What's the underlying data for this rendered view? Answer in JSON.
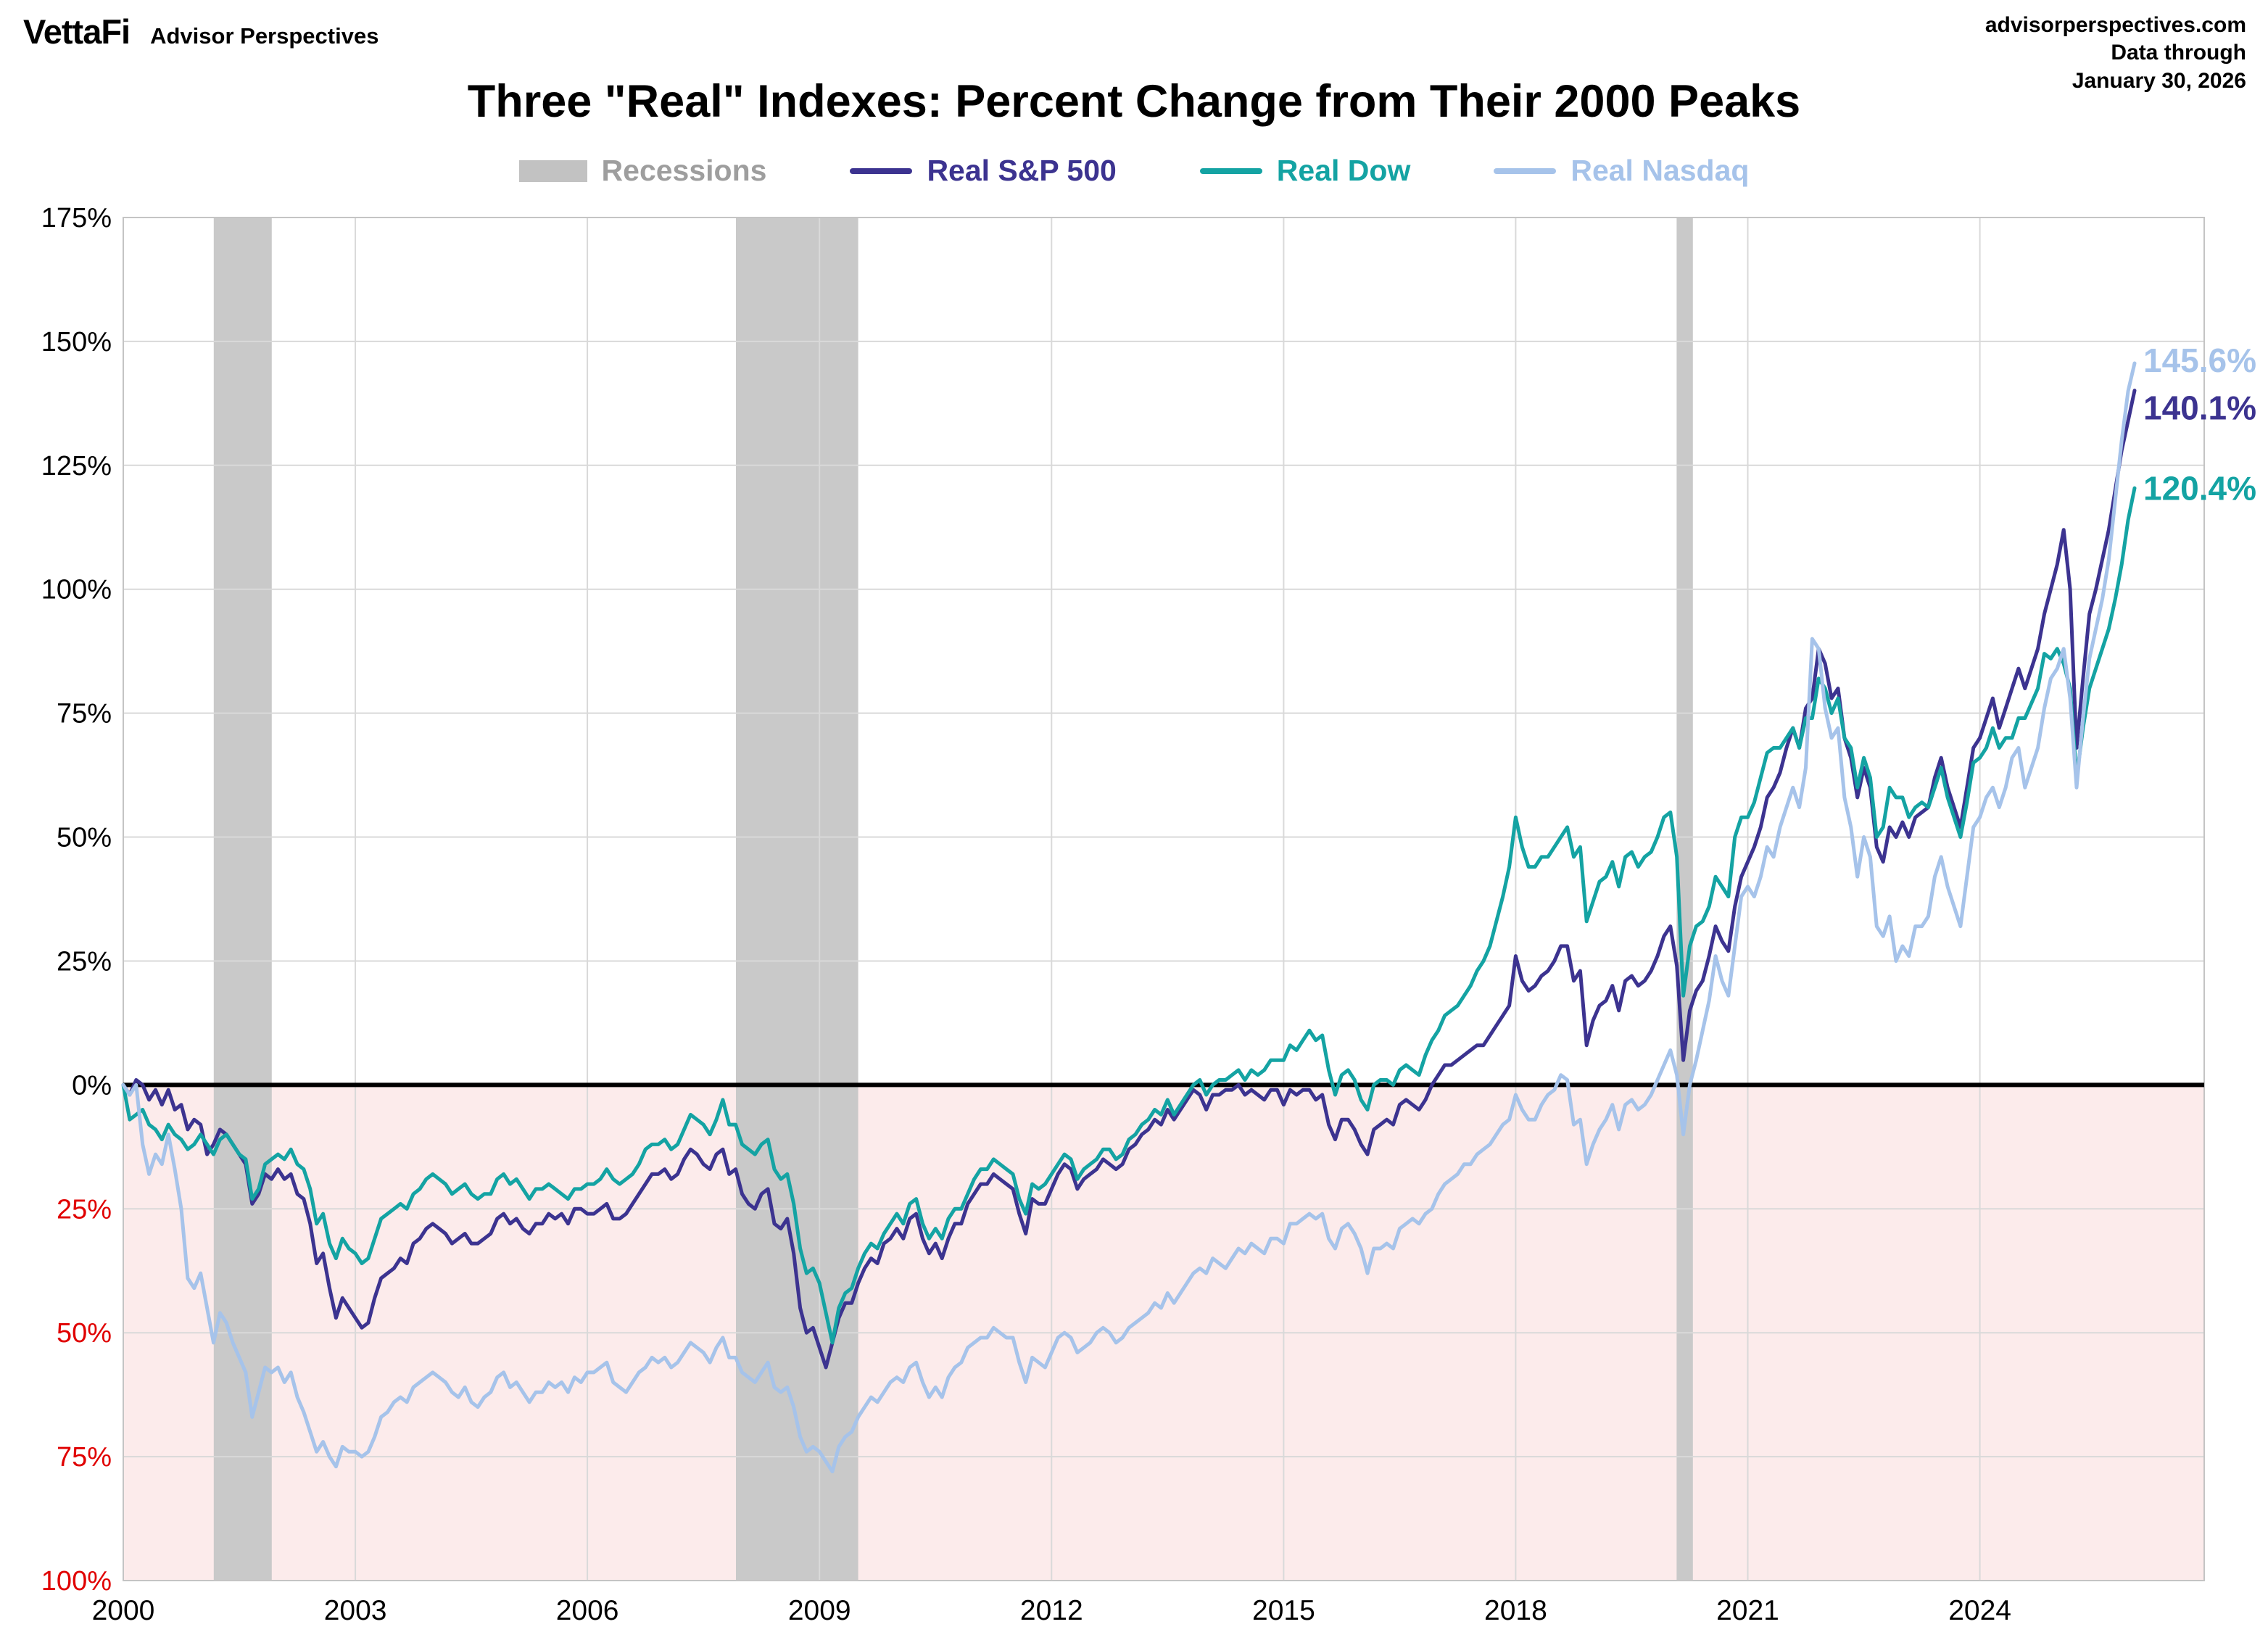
{
  "header": {
    "logo": "VettaFi",
    "logo_sub": "Advisor Perspectives",
    "source": "advisorperspectives.com",
    "data_through_label": "Data through",
    "data_through_date": "January 30, 2026"
  },
  "title": "Three \"Real\" Indexes: Percent Change from Their 2000 Peaks",
  "legend": [
    {
      "label": "Recessions",
      "type": "band",
      "color": "#c2c2c2",
      "text_color": "#9e9e9e"
    },
    {
      "label": "Real S&P 500",
      "type": "line",
      "color": "#3c3390",
      "text_color": "#3c3390"
    },
    {
      "label": "Real Dow",
      "type": "line",
      "color": "#14a3a3",
      "text_color": "#14a3a3"
    },
    {
      "label": "Real Nasdaq",
      "type": "line",
      "color": "#a6c3ea",
      "text_color": "#a6c3ea"
    }
  ],
  "chart_data": {
    "type": "line",
    "title": "Three \"Real\" Indexes: Percent Change from Their 2000 Peaks",
    "xlabel": "",
    "ylabel": "",
    "xlim": [
      2000,
      2026.9
    ],
    "ylim": [
      -100,
      175
    ],
    "grid": true,
    "legend_position": "top",
    "x_start_year": 2000,
    "x_step_months": 1,
    "negative_region_color": "#fcebeb",
    "negative_tick_color": "#e00000",
    "recession_color": "#c9c9c9",
    "gridline_color": "#d9d9d9",
    "zero_line_color": "#000000",
    "recessions": [
      [
        2001.17,
        2001.92
      ],
      [
        2007.92,
        2009.5
      ],
      [
        2020.08,
        2020.29
      ]
    ],
    "y_ticks": [
      {
        "value": 175,
        "label": "175%"
      },
      {
        "value": 150,
        "label": "150%"
      },
      {
        "value": 125,
        "label": "125%"
      },
      {
        "value": 100,
        "label": "100%"
      },
      {
        "value": 75,
        "label": "75%"
      },
      {
        "value": 50,
        "label": "50%"
      },
      {
        "value": 25,
        "label": "25%"
      },
      {
        "value": 0,
        "label": "0%"
      },
      {
        "value": -25,
        "label": "25%",
        "negative": true
      },
      {
        "value": -50,
        "label": "50%",
        "negative": true
      },
      {
        "value": -75,
        "label": "75%",
        "negative": true
      },
      {
        "value": -100,
        "label": "100%",
        "negative": true
      }
    ],
    "x_ticks": [
      {
        "value": 2000,
        "label": "2000"
      },
      {
        "value": 2003,
        "label": "2003"
      },
      {
        "value": 2006,
        "label": "2006"
      },
      {
        "value": 2009,
        "label": "2009"
      },
      {
        "value": 2012,
        "label": "2012"
      },
      {
        "value": 2015,
        "label": "2015"
      },
      {
        "value": 2018,
        "label": "2018"
      },
      {
        "value": 2021,
        "label": "2021"
      },
      {
        "value": 2024,
        "label": "2024"
      }
    ],
    "series": [
      {
        "name": "Real S&P 500",
        "color": "#3c3390",
        "end_label": "140.1%",
        "end_value": 140.1,
        "values": [
          0,
          -2,
          1,
          0,
          -3,
          -1,
          -4,
          -1,
          -5,
          -4,
          -9,
          -7,
          -8,
          -14,
          -12,
          -9,
          -10,
          -12,
          -14,
          -16,
          -24,
          -22,
          -18,
          -19,
          -17,
          -19,
          -18,
          -22,
          -23,
          -28,
          -36,
          -34,
          -41,
          -47,
          -43,
          -45,
          -47,
          -49,
          -48,
          -43,
          -39,
          -38,
          -37,
          -35,
          -36,
          -32,
          -31,
          -29,
          -28,
          -29,
          -30,
          -32,
          -31,
          -30,
          -32,
          -32,
          -31,
          -30,
          -27,
          -26,
          -28,
          -27,
          -29,
          -30,
          -28,
          -28,
          -26,
          -27,
          -26,
          -28,
          -25,
          -25,
          -26,
          -26,
          -25,
          -24,
          -27,
          -27,
          -26,
          -24,
          -22,
          -20,
          -18,
          -18,
          -17,
          -19,
          -18,
          -15,
          -13,
          -14,
          -16,
          -17,
          -14,
          -13,
          -18,
          -17,
          -22,
          -24,
          -25,
          -22,
          -21,
          -28,
          -29,
          -27,
          -34,
          -45,
          -50,
          -49,
          -53,
          -57,
          -52,
          -47,
          -44,
          -44,
          -40,
          -37,
          -35,
          -36,
          -32,
          -31,
          -29,
          -31,
          -27,
          -26,
          -31,
          -34,
          -32,
          -35,
          -31,
          -28,
          -28,
          -24,
          -22,
          -20,
          -20,
          -18,
          -19,
          -20,
          -21,
          -26,
          -30,
          -23,
          -24,
          -24,
          -21,
          -18,
          -16,
          -17,
          -21,
          -19,
          -18,
          -17,
          -15,
          -16,
          -17,
          -16,
          -13,
          -12,
          -10,
          -9,
          -7,
          -8,
          -5,
          -7,
          -5,
          -3,
          -1,
          -2,
          -5,
          -2,
          -2,
          -1,
          -1,
          0,
          -2,
          -1,
          -2,
          -3,
          -1,
          -1,
          -4,
          -1,
          -2,
          -1,
          -1,
          -3,
          -2,
          -8,
          -11,
          -7,
          -7,
          -9,
          -12,
          -14,
          -9,
          -8,
          -7,
          -8,
          -4,
          -3,
          -4,
          -5,
          -3,
          0,
          2,
          4,
          4,
          5,
          6,
          7,
          8,
          8,
          10,
          12,
          14,
          16,
          26,
          21,
          19,
          20,
          22,
          23,
          25,
          28,
          28,
          21,
          23,
          8,
          13,
          16,
          17,
          20,
          15,
          21,
          22,
          20,
          21,
          23,
          26,
          30,
          32,
          24,
          5,
          15,
          19,
          21,
          26,
          32,
          29,
          27,
          36,
          42,
          45,
          48,
          52,
          58,
          60,
          63,
          68,
          72,
          68,
          76,
          78,
          88,
          85,
          78,
          80,
          70,
          66,
          58,
          64,
          60,
          48,
          45,
          52,
          50,
          53,
          50,
          54,
          55,
          56,
          62,
          66,
          60,
          56,
          52,
          60,
          68,
          70,
          74,
          78,
          72,
          76,
          80,
          84,
          80,
          84,
          88,
          95,
          100,
          105,
          112,
          100,
          68,
          82,
          95,
          100,
          106,
          112,
          120,
          128,
          134,
          140.1
        ]
      },
      {
        "name": "Real Dow",
        "color": "#14a3a3",
        "end_label": "120.4%",
        "end_value": 120.4,
        "values": [
          0,
          -7,
          -6,
          -5,
          -8,
          -9,
          -11,
          -8,
          -10,
          -11,
          -13,
          -12,
          -10,
          -12,
          -14,
          -11,
          -10,
          -12,
          -14,
          -15,
          -23,
          -21,
          -16,
          -15,
          -14,
          -15,
          -13,
          -16,
          -17,
          -21,
          -28,
          -26,
          -32,
          -35,
          -31,
          -33,
          -34,
          -36,
          -35,
          -31,
          -27,
          -26,
          -25,
          -24,
          -25,
          -22,
          -21,
          -19,
          -18,
          -19,
          -20,
          -22,
          -21,
          -20,
          -22,
          -23,
          -22,
          -22,
          -19,
          -18,
          -20,
          -19,
          -21,
          -23,
          -21,
          -21,
          -20,
          -21,
          -22,
          -23,
          -21,
          -21,
          -20,
          -20,
          -19,
          -17,
          -19,
          -20,
          -19,
          -18,
          -16,
          -13,
          -12,
          -12,
          -11,
          -13,
          -12,
          -9,
          -6,
          -7,
          -8,
          -10,
          -7,
          -3,
          -8,
          -8,
          -12,
          -13,
          -14,
          -12,
          -11,
          -17,
          -19,
          -18,
          -24,
          -33,
          -38,
          -37,
          -40,
          -46,
          -52,
          -45,
          -42,
          -41,
          -37,
          -34,
          -32,
          -33,
          -30,
          -28,
          -26,
          -28,
          -24,
          -23,
          -28,
          -31,
          -29,
          -31,
          -27,
          -25,
          -25,
          -22,
          -19,
          -17,
          -17,
          -15,
          -16,
          -17,
          -18,
          -23,
          -26,
          -20,
          -21,
          -20,
          -18,
          -16,
          -14,
          -15,
          -19,
          -17,
          -16,
          -15,
          -13,
          -13,
          -15,
          -14,
          -11,
          -10,
          -8,
          -7,
          -5,
          -6,
          -3,
          -6,
          -4,
          -2,
          0,
          1,
          -2,
          0,
          1,
          1,
          2,
          3,
          1,
          3,
          2,
          3,
          5,
          5,
          5,
          8,
          7,
          9,
          11,
          9,
          10,
          3,
          -2,
          2,
          3,
          1,
          -3,
          -5,
          0,
          1,
          1,
          0,
          3,
          4,
          3,
          2,
          6,
          9,
          11,
          14,
          15,
          16,
          18,
          20,
          23,
          25,
          28,
          33,
          38,
          44,
          54,
          48,
          44,
          44,
          46,
          46,
          48,
          50,
          52,
          46,
          48,
          33,
          37,
          41,
          42,
          45,
          40,
          46,
          47,
          44,
          46,
          47,
          50,
          54,
          55,
          46,
          18,
          28,
          32,
          33,
          36,
          42,
          40,
          38,
          50,
          54,
          54,
          57,
          62,
          67,
          68,
          68,
          70,
          72,
          68,
          74,
          74,
          82,
          80,
          75,
          78,
          70,
          68,
          60,
          66,
          62,
          50,
          52,
          60,
          58,
          58,
          54,
          56,
          57,
          56,
          60,
          64,
          58,
          54,
          50,
          57,
          65,
          66,
          68,
          72,
          68,
          70,
          70,
          74,
          74,
          77,
          80,
          87,
          86,
          88,
          85,
          80,
          62,
          72,
          80,
          84,
          88,
          92,
          98,
          105,
          114,
          120.4
        ]
      },
      {
        "name": "Real Nasdaq",
        "color": "#a6c3ea",
        "end_label": "145.6%",
        "end_value": 145.6,
        "values": [
          0,
          -2,
          0,
          -12,
          -18,
          -14,
          -16,
          -10,
          -17,
          -25,
          -39,
          -41,
          -38,
          -45,
          -52,
          -46,
          -48,
          -52,
          -55,
          -58,
          -67,
          -62,
          -57,
          -58,
          -57,
          -60,
          -58,
          -63,
          -66,
          -70,
          -74,
          -72,
          -75,
          -77,
          -73,
          -74,
          -74,
          -75,
          -74,
          -71,
          -67,
          -66,
          -64,
          -63,
          -64,
          -61,
          -60,
          -59,
          -58,
          -59,
          -60,
          -62,
          -63,
          -61,
          -64,
          -65,
          -63,
          -62,
          -59,
          -58,
          -61,
          -60,
          -62,
          -64,
          -62,
          -62,
          -60,
          -61,
          -60,
          -62,
          -59,
          -60,
          -58,
          -58,
          -57,
          -56,
          -60,
          -61,
          -62,
          -60,
          -58,
          -57,
          -55,
          -56,
          -55,
          -57,
          -56,
          -54,
          -52,
          -53,
          -54,
          -56,
          -53,
          -51,
          -55,
          -55,
          -58,
          -59,
          -60,
          -58,
          -56,
          -61,
          -62,
          -61,
          -65,
          -71,
          -74,
          -73,
          -74,
          -76,
          -78,
          -73,
          -71,
          -70,
          -67,
          -65,
          -63,
          -64,
          -62,
          -60,
          -59,
          -60,
          -57,
          -56,
          -60,
          -63,
          -61,
          -63,
          -59,
          -57,
          -56,
          -53,
          -52,
          -51,
          -51,
          -49,
          -50,
          -51,
          -51,
          -56,
          -60,
          -55,
          -56,
          -57,
          -54,
          -51,
          -50,
          -51,
          -54,
          -53,
          -52,
          -50,
          -49,
          -50,
          -52,
          -51,
          -49,
          -48,
          -47,
          -46,
          -44,
          -45,
          -42,
          -44,
          -42,
          -40,
          -38,
          -37,
          -38,
          -35,
          -36,
          -37,
          -35,
          -33,
          -34,
          -32,
          -33,
          -34,
          -31,
          -31,
          -32,
          -28,
          -28,
          -27,
          -26,
          -27,
          -26,
          -31,
          -33,
          -29,
          -28,
          -30,
          -33,
          -38,
          -33,
          -33,
          -32,
          -33,
          -29,
          -28,
          -27,
          -28,
          -26,
          -25,
          -22,
          -20,
          -19,
          -18,
          -16,
          -16,
          -14,
          -13,
          -12,
          -10,
          -8,
          -7,
          -2,
          -5,
          -7,
          -7,
          -4,
          -2,
          -1,
          2,
          1,
          -8,
          -7,
          -16,
          -12,
          -9,
          -7,
          -4,
          -9,
          -4,
          -3,
          -5,
          -4,
          -2,
          1,
          4,
          7,
          2,
          -10,
          0,
          5,
          11,
          17,
          26,
          21,
          18,
          28,
          38,
          40,
          38,
          42,
          48,
          46,
          52,
          56,
          60,
          56,
          64,
          90,
          88,
          76,
          70,
          72,
          58,
          52,
          42,
          50,
          46,
          32,
          30,
          34,
          25,
          28,
          26,
          32,
          32,
          34,
          42,
          46,
          40,
          36,
          32,
          42,
          52,
          54,
          58,
          60,
          56,
          60,
          66,
          68,
          60,
          64,
          68,
          76,
          82,
          84,
          88,
          78,
          60,
          74,
          86,
          92,
          98,
          106,
          118,
          130,
          140,
          145.6
        ]
      }
    ]
  }
}
